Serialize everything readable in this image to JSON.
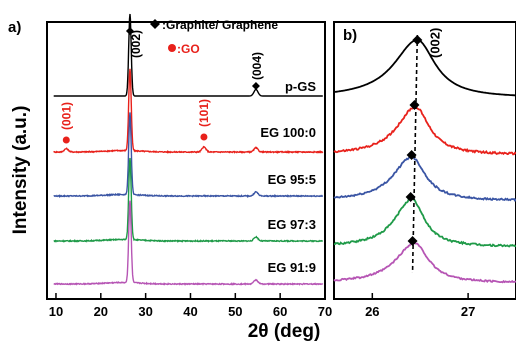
{
  "chart_data": [
    {
      "panel_label": "a)",
      "type": "line",
      "xlabel": "2θ (deg)",
      "ylabel": "Intensity (a.u.)",
      "xlim": [
        8,
        70
      ],
      "xticks": [
        10,
        20,
        30,
        40,
        50,
        60,
        70
      ],
      "y_ticks_shown": false,
      "legend": [
        {
          "label": ":Graphite/ Graphene",
          "marker": "diamond",
          "color": "#000000"
        },
        {
          "label": ":GO",
          "marker": "circle",
          "color": "#e8211b"
        }
      ],
      "peak_labels": [
        {
          "text": "(002)",
          "x": 26.5,
          "color": "#000000",
          "marker": "diamond"
        },
        {
          "text": "(004)",
          "x": 54.6,
          "color": "#000000",
          "marker": "diamond"
        },
        {
          "text": "(001)",
          "x": 12.3,
          "color": "#e8211b",
          "marker": "circle"
        },
        {
          "text": "(101)",
          "x": 43.0,
          "color": "#e8211b",
          "marker": "circle"
        }
      ],
      "series": [
        {
          "name": "p-GS",
          "color": "#000000",
          "peaks": [
            {
              "x": 26.5,
              "height": 1.0
            },
            {
              "x": 54.6,
              "height": 0.08
            }
          ]
        },
        {
          "name": "EG 100:0",
          "color": "#e8211b",
          "peaks": [
            {
              "x": 26.5,
              "height": 1.0
            },
            {
              "x": 12.3,
              "height": 0.04
            },
            {
              "x": 43.0,
              "height": 0.06
            },
            {
              "x": 54.6,
              "height": 0.05
            }
          ]
        },
        {
          "name": "EG 95:5",
          "color": "#3a55a4",
          "peaks": [
            {
              "x": 26.5,
              "height": 1.0
            },
            {
              "x": 54.6,
              "height": 0.05
            }
          ]
        },
        {
          "name": "EG 97:3",
          "color": "#1f9a48",
          "peaks": [
            {
              "x": 26.5,
              "height": 1.0
            },
            {
              "x": 54.6,
              "height": 0.05
            }
          ]
        },
        {
          "name": "EG 91:9",
          "color": "#b655b4",
          "peaks": [
            {
              "x": 26.5,
              "height": 1.0
            },
            {
              "x": 54.6,
              "height": 0.05
            }
          ]
        }
      ]
    },
    {
      "panel_label": "b)",
      "type": "line",
      "xlim": [
        25.6,
        27.5
      ],
      "xticks": [
        26,
        27
      ],
      "y_ticks_shown": false,
      "peak_label": "(002)",
      "series": [
        {
          "color": "#000000",
          "center": 26.47,
          "width": 0.28,
          "peak_marker_x": 26.47
        },
        {
          "color": "#e8211b",
          "center": 26.45,
          "width": 0.22,
          "peak_marker_x": 26.44
        },
        {
          "color": "#3a55a4",
          "center": 26.41,
          "width": 0.22,
          "peak_marker_x": 26.41
        },
        {
          "color": "#1f9a48",
          "center": 26.41,
          "width": 0.2,
          "peak_marker_x": 26.4
        },
        {
          "color": "#b655b4",
          "center": 26.44,
          "width": 0.22,
          "peak_marker_x": 26.42
        }
      ]
    }
  ]
}
